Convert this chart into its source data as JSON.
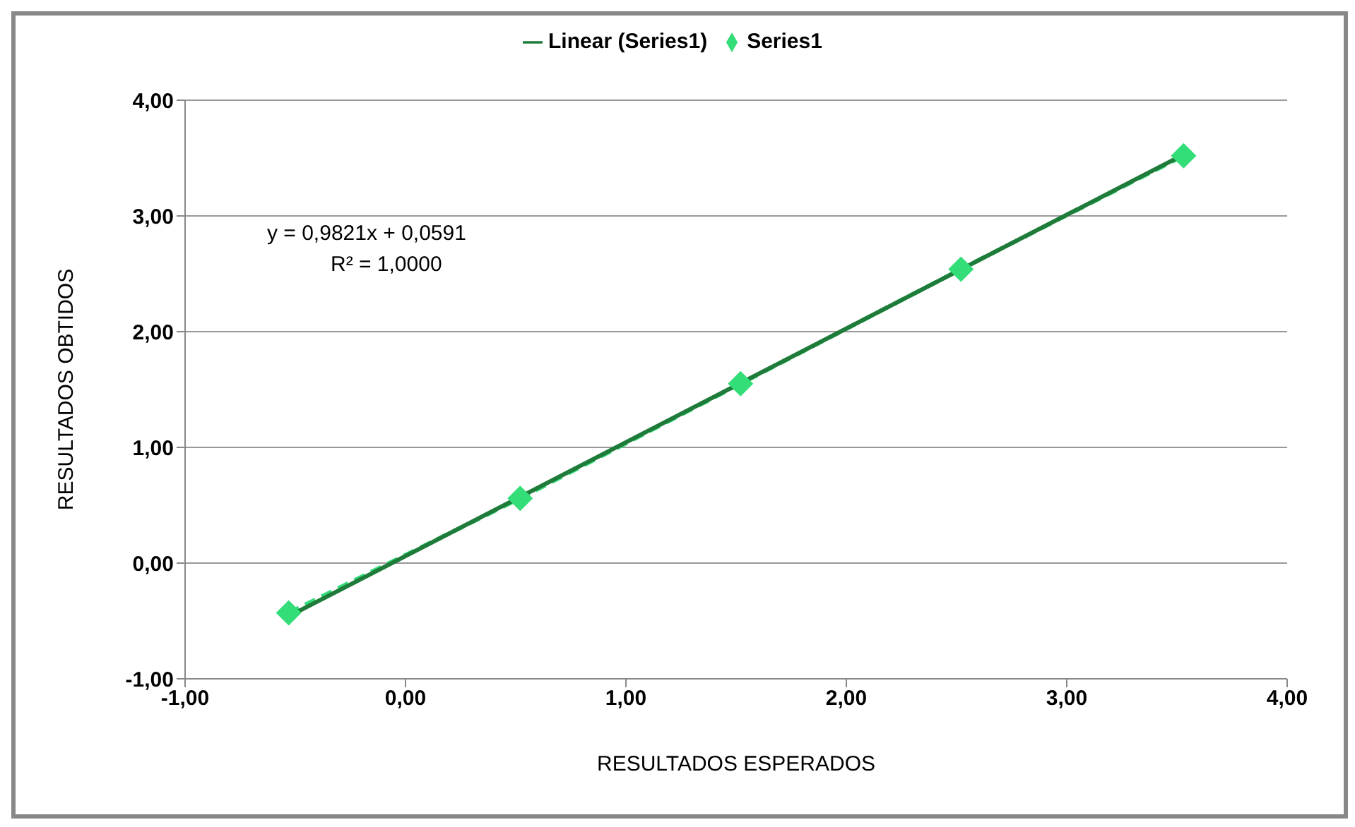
{
  "chart_data": {
    "type": "line",
    "xlabel": "RESULTADOS ESPERADOS",
    "ylabel": "RESULTADOS OBTIDOS",
    "annotations": [
      "y = 0,9821x + 0,0591",
      "R² = 1,0000"
    ],
    "series": [
      {
        "name": "Series1",
        "color": "#33dd77",
        "x": [
          -0.53,
          0.52,
          1.52,
          2.52,
          3.53
        ],
        "values": [
          -0.43,
          0.56,
          1.55,
          2.54,
          3.52
        ],
        "marker": "diamond",
        "line_style": "dashed"
      },
      {
        "name": "Linear (Series1)",
        "type": "line",
        "color": "#1e7b3a",
        "x": [
          -0.53,
          3.53
        ],
        "values": [
          -0.46,
          3.53
        ],
        "marker": "none",
        "line_style": "solid"
      }
    ],
    "xlim": [
      -1,
      4
    ],
    "ylim": [
      -1,
      4
    ],
    "xticks": [
      {
        "value": -1,
        "label": "-1,00"
      },
      {
        "value": 0,
        "label": "0,00"
      },
      {
        "value": 1,
        "label": "1,00"
      },
      {
        "value": 2,
        "label": "2,00"
      },
      {
        "value": 3,
        "label": "3,00"
      },
      {
        "value": 4,
        "label": "4,00"
      }
    ],
    "yticks": [
      {
        "value": -1,
        "label": "-1,00"
      },
      {
        "value": 0,
        "label": "0,00"
      },
      {
        "value": 1,
        "label": "1,00"
      },
      {
        "value": 2,
        "label": "2,00"
      },
      {
        "value": 3,
        "label": "3,00"
      },
      {
        "value": 4,
        "label": "4,00"
      }
    ],
    "grid": "y",
    "legend": "top"
  }
}
